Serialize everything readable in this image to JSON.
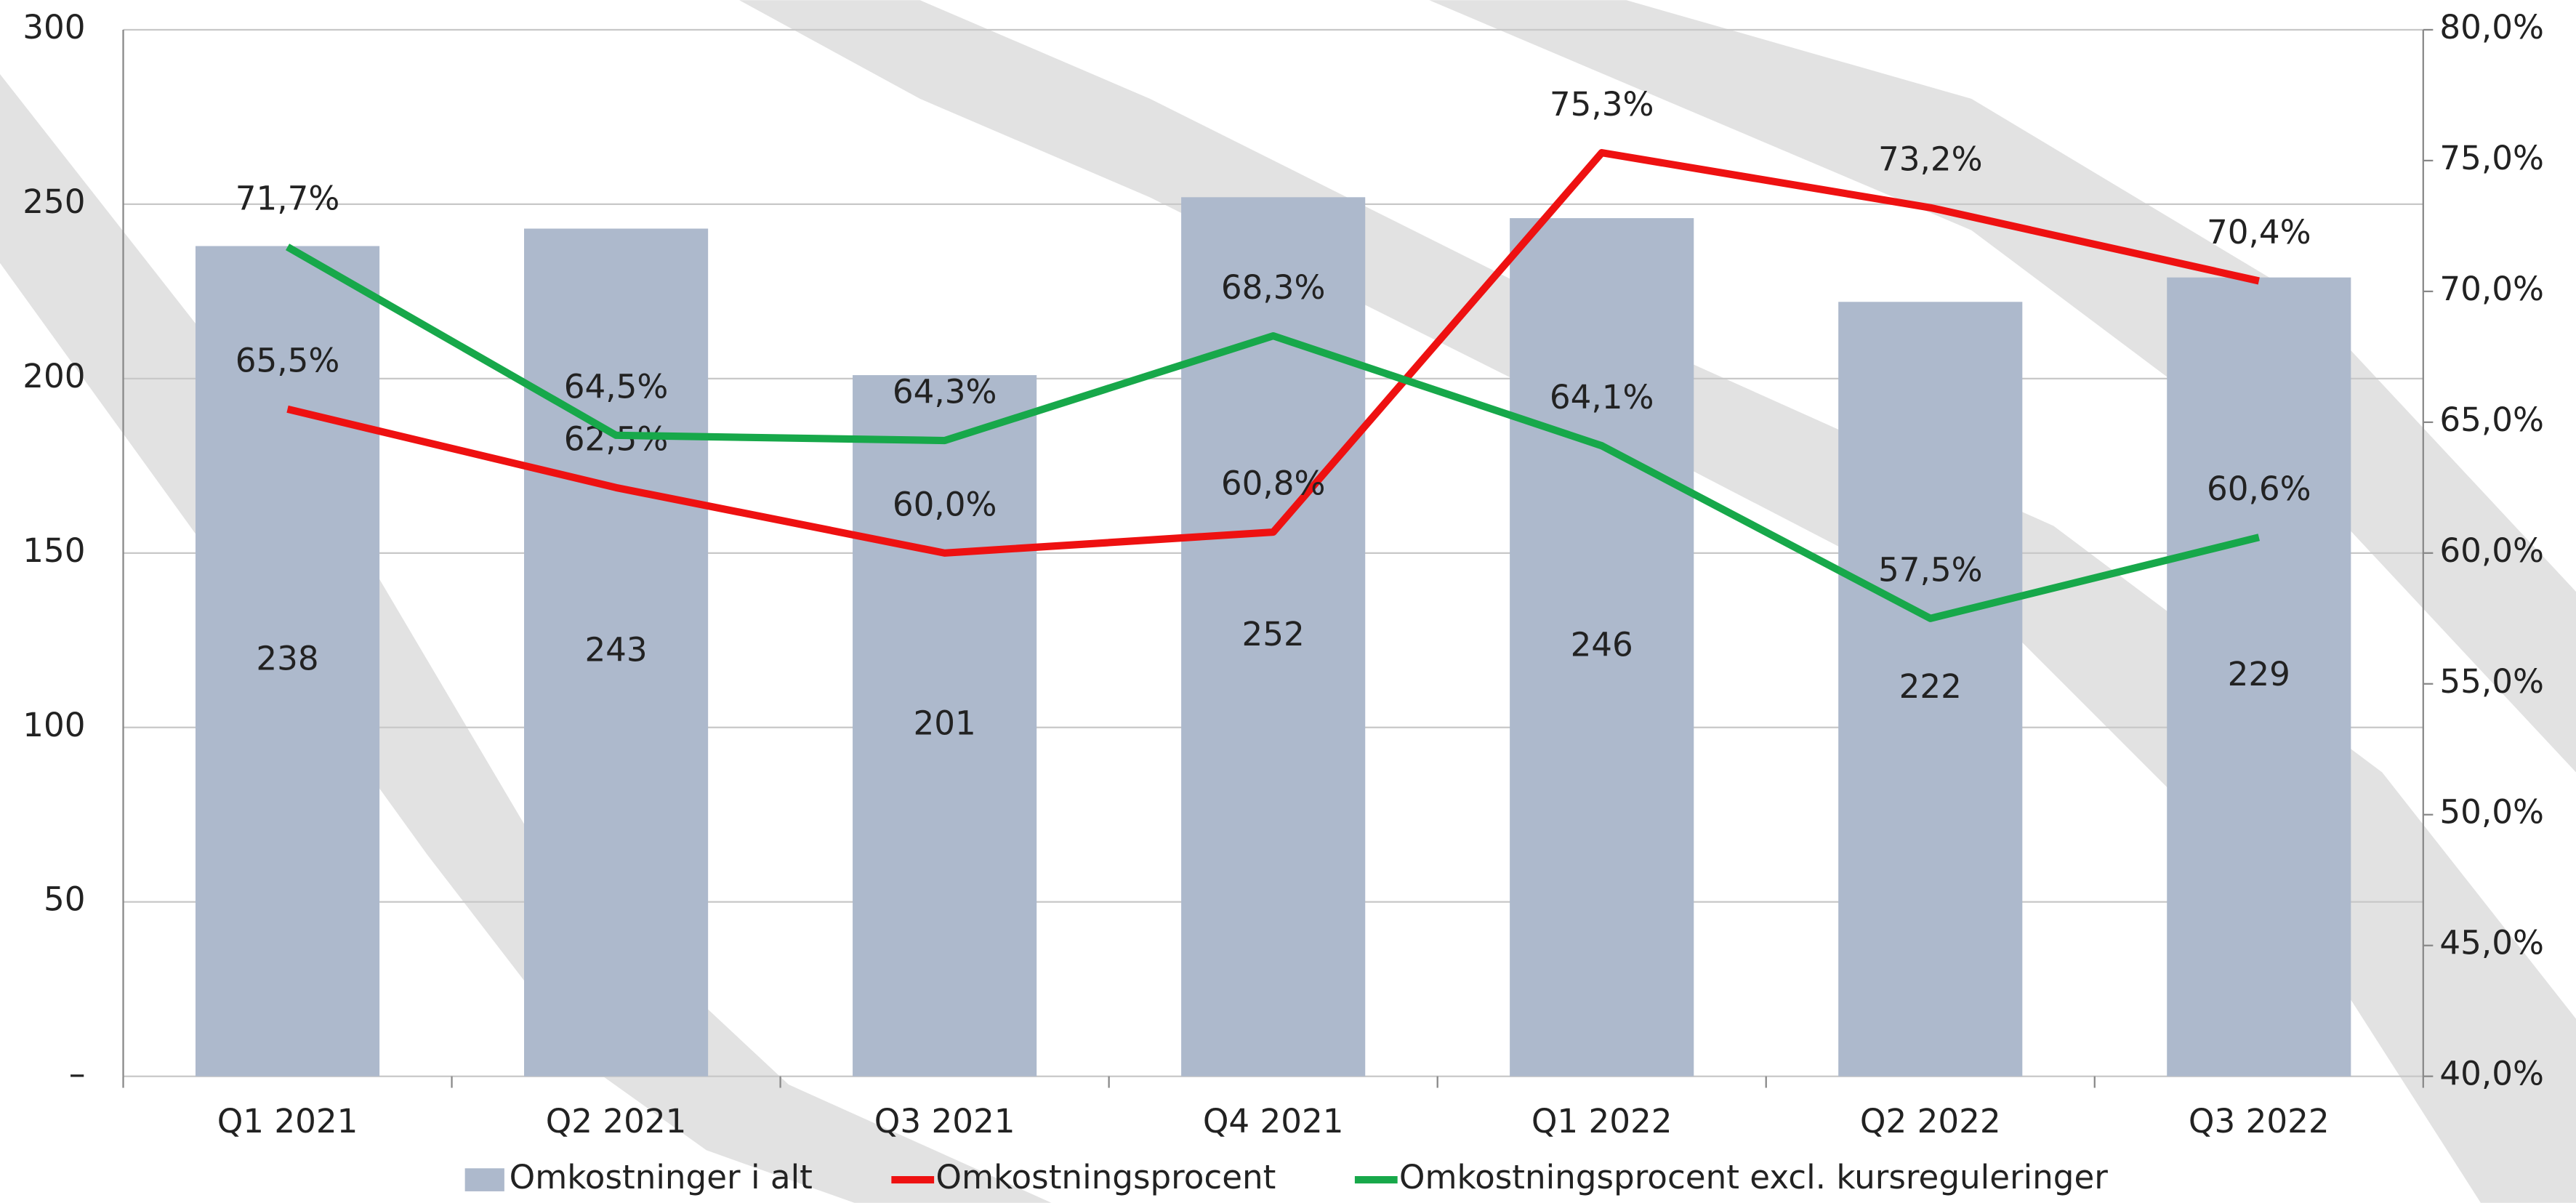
{
  "chart_data": {
    "type": "bar",
    "categories": [
      "Q1 2021",
      "Q2 2021",
      "Q3 2021",
      "Q4 2021",
      "Q1 2022",
      "Q2 2022",
      "Q3 2022"
    ],
    "series": [
      {
        "name": "Omkostninger i alt",
        "type": "bar",
        "color": "#adb9cc",
        "values": [
          238,
          243,
          201,
          252,
          246,
          222,
          229
        ]
      },
      {
        "name": "Omkostningsprocent",
        "type": "line",
        "axis": "y2",
        "color": "#ee1111",
        "values": [
          65.5,
          62.5,
          60.0,
          60.8,
          75.3,
          73.2,
          70.4
        ],
        "value_labels": [
          "65,5%",
          "62,5%",
          "60,0%",
          "60,8%",
          "75,3%",
          "73,2%",
          "70,4%"
        ]
      },
      {
        "name": "Omkostningsprocent excl. kursreguleringer",
        "type": "line",
        "axis": "y2",
        "color": "#17a84a",
        "values": [
          71.7,
          64.5,
          64.3,
          68.3,
          64.1,
          57.5,
          60.6
        ],
        "value_labels": [
          "71,7%",
          "64,5%",
          "64,3%",
          "68,3%",
          "64,1%",
          "57,5%",
          "60,6%"
        ]
      }
    ],
    "ylim": [
      0,
      300
    ],
    "yticks": [
      {
        "value": 0,
        "label": "–"
      },
      50,
      100,
      150,
      200,
      250,
      300
    ],
    "y2lim": [
      40,
      80
    ],
    "y2ticks": [
      {
        "value": 40,
        "label": "40,0%"
      },
      {
        "value": 45,
        "label": "45,0%"
      },
      {
        "value": 50,
        "label": "50,0%"
      },
      {
        "value": 55,
        "label": "55,0%"
      },
      {
        "value": 60,
        "label": "60,0%"
      },
      {
        "value": 65,
        "label": "65,0%"
      },
      {
        "value": 70,
        "label": "70,0%"
      },
      {
        "value": 75,
        "label": "75,0%"
      },
      {
        "value": 80,
        "label": "80,0%"
      }
    ],
    "grid": true,
    "legend": "bottom"
  }
}
